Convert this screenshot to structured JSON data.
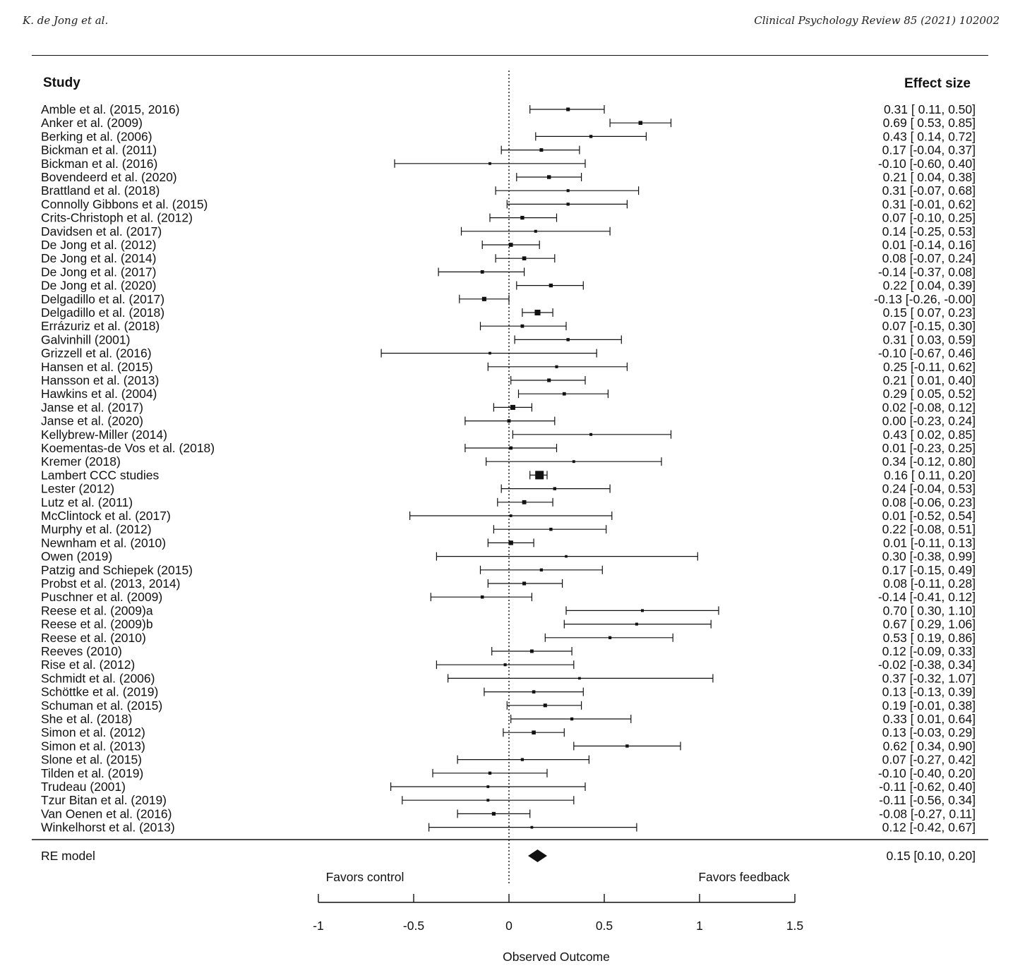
{
  "page_header": {
    "authors": "K. de Jong et al.",
    "journal": "Clinical Psychology Review 85 (2021) 102002"
  },
  "chart_data": {
    "type": "forest",
    "study_header": "Study",
    "effect_header": "Effect size",
    "xlabel": "Observed Outcome",
    "left_favors": "Favors control",
    "right_favors": "Favors feedback",
    "xlim": [
      -1,
      1.5
    ],
    "xticks": [
      -1,
      -0.5,
      0,
      0.5,
      1,
      1.5
    ],
    "xtick_labels": [
      "-1",
      "-0.5",
      "0",
      "0.5",
      "1",
      "1.5"
    ],
    "reference_line": 0,
    "studies": [
      {
        "name": "Amble et al. (2015, 2016)",
        "es": 0.31,
        "lo": 0.11,
        "hi": 0.5,
        "ci_text": "0.31 [ 0.11,  0.50]"
      },
      {
        "name": "Anker et al. (2009)",
        "es": 0.69,
        "lo": 0.53,
        "hi": 0.85,
        "ci_text": "0.69 [ 0.53,  0.85]"
      },
      {
        "name": "Berking et al. (2006)",
        "es": 0.43,
        "lo": 0.14,
        "hi": 0.72,
        "ci_text": "0.43 [ 0.14,  0.72]"
      },
      {
        "name": "Bickman et al. (2011)",
        "es": 0.17,
        "lo": -0.04,
        "hi": 0.37,
        "ci_text": "0.17 [-0.04,  0.37]"
      },
      {
        "name": "Bickman et al. (2016)",
        "es": -0.1,
        "lo": -0.6,
        "hi": 0.4,
        "ci_text": "-0.10 [-0.60,  0.40]"
      },
      {
        "name": "Bovendeerd et al. (2020)",
        "es": 0.21,
        "lo": 0.04,
        "hi": 0.38,
        "ci_text": "0.21 [ 0.04,  0.38]"
      },
      {
        "name": "Brattland et al. (2018)",
        "es": 0.31,
        "lo": -0.07,
        "hi": 0.68,
        "ci_text": "0.31 [-0.07,  0.68]"
      },
      {
        "name": "Connolly Gibbons et al. (2015)",
        "es": 0.31,
        "lo": -0.01,
        "hi": 0.62,
        "ci_text": "0.31 [-0.01,  0.62]"
      },
      {
        "name": "Crits-Christoph et al. (2012)",
        "es": 0.07,
        "lo": -0.1,
        "hi": 0.25,
        "ci_text": "0.07 [-0.10,  0.25]"
      },
      {
        "name": "Davidsen et al. (2017)",
        "es": 0.14,
        "lo": -0.25,
        "hi": 0.53,
        "ci_text": "0.14 [-0.25,  0.53]"
      },
      {
        "name": "De Jong et al. (2012)",
        "es": 0.01,
        "lo": -0.14,
        "hi": 0.16,
        "ci_text": "0.01 [-0.14,  0.16]"
      },
      {
        "name": "De Jong et al. (2014)",
        "es": 0.08,
        "lo": -0.07,
        "hi": 0.24,
        "ci_text": "0.08 [-0.07,  0.24]"
      },
      {
        "name": "De Jong et al. (2017)",
        "es": -0.14,
        "lo": -0.37,
        "hi": 0.08,
        "ci_text": "-0.14 [-0.37,  0.08]"
      },
      {
        "name": "De Jong et al. (2020)",
        "es": 0.22,
        "lo": 0.04,
        "hi": 0.39,
        "ci_text": "0.22 [ 0.04,  0.39]"
      },
      {
        "name": "Delgadillo et al. (2017)",
        "es": -0.13,
        "lo": -0.26,
        "hi": -0.0,
        "ci_text": "-0.13 [-0.26, -0.00]"
      },
      {
        "name": "Delgadillo et al. (2018)",
        "es": 0.15,
        "lo": 0.07,
        "hi": 0.23,
        "ci_text": "0.15 [ 0.07,  0.23]"
      },
      {
        "name": "Errázuriz et al. (2018)",
        "es": 0.07,
        "lo": -0.15,
        "hi": 0.3,
        "ci_text": "0.07 [-0.15,  0.30]"
      },
      {
        "name": "Galvinhill (2001)",
        "es": 0.31,
        "lo": 0.03,
        "hi": 0.59,
        "ci_text": "0.31 [ 0.03,  0.59]"
      },
      {
        "name": "Grizzell et al. (2016)",
        "es": -0.1,
        "lo": -0.67,
        "hi": 0.46,
        "ci_text": "-0.10 [-0.67,  0.46]"
      },
      {
        "name": "Hansen et al. (2015)",
        "es": 0.25,
        "lo": -0.11,
        "hi": 0.62,
        "ci_text": "0.25 [-0.11,  0.62]"
      },
      {
        "name": "Hansson et al. (2013)",
        "es": 0.21,
        "lo": 0.01,
        "hi": 0.4,
        "ci_text": "0.21 [ 0.01,  0.40]"
      },
      {
        "name": "Hawkins et al. (2004)",
        "es": 0.29,
        "lo": 0.05,
        "hi": 0.52,
        "ci_text": "0.29 [ 0.05,  0.52]"
      },
      {
        "name": "Janse et al. (2017)",
        "es": 0.02,
        "lo": -0.08,
        "hi": 0.12,
        "ci_text": "0.02 [-0.08,  0.12]"
      },
      {
        "name": "Janse et al. (2020)",
        "es": 0.0,
        "lo": -0.23,
        "hi": 0.24,
        "ci_text": "0.00 [-0.23,  0.24]"
      },
      {
        "name": "Kellybrew-Miller (2014)",
        "es": 0.43,
        "lo": 0.02,
        "hi": 0.85,
        "ci_text": "0.43 [ 0.02,  0.85]"
      },
      {
        "name": "Koementas-de Vos et al. (2018)",
        "es": 0.01,
        "lo": -0.23,
        "hi": 0.25,
        "ci_text": "0.01 [-0.23,  0.25]"
      },
      {
        "name": "Kremer (2018)",
        "es": 0.34,
        "lo": -0.12,
        "hi": 0.8,
        "ci_text": "0.34 [-0.12,  0.80]"
      },
      {
        "name": "Lambert CCC studies",
        "es": 0.16,
        "lo": 0.11,
        "hi": 0.2,
        "ci_text": "0.16 [ 0.11,  0.20]"
      },
      {
        "name": "Lester (2012)",
        "es": 0.24,
        "lo": -0.04,
        "hi": 0.53,
        "ci_text": "0.24 [-0.04,  0.53]"
      },
      {
        "name": "Lutz et al. (2011)",
        "es": 0.08,
        "lo": -0.06,
        "hi": 0.23,
        "ci_text": "0.08 [-0.06,  0.23]"
      },
      {
        "name": "McClintock et al. (2017)",
        "es": 0.01,
        "lo": -0.52,
        "hi": 0.54,
        "ci_text": "0.01 [-0.52,  0.54]"
      },
      {
        "name": "Murphy et al. (2012)",
        "es": 0.22,
        "lo": -0.08,
        "hi": 0.51,
        "ci_text": "0.22 [-0.08,  0.51]"
      },
      {
        "name": "Newnham et al. (2010)",
        "es": 0.01,
        "lo": -0.11,
        "hi": 0.13,
        "ci_text": "0.01 [-0.11,  0.13]"
      },
      {
        "name": "Owen (2019)",
        "es": 0.3,
        "lo": -0.38,
        "hi": 0.99,
        "ci_text": "0.30 [-0.38,  0.99]"
      },
      {
        "name": "Patzig and Schiepek (2015)",
        "es": 0.17,
        "lo": -0.15,
        "hi": 0.49,
        "ci_text": "0.17 [-0.15,  0.49]"
      },
      {
        "name": "Probst et al. (2013, 2014)",
        "es": 0.08,
        "lo": -0.11,
        "hi": 0.28,
        "ci_text": "0.08 [-0.11,  0.28]"
      },
      {
        "name": "Puschner et al. (2009)",
        "es": -0.14,
        "lo": -0.41,
        "hi": 0.12,
        "ci_text": "-0.14 [-0.41,  0.12]"
      },
      {
        "name": "Reese et al. (2009)a",
        "es": 0.7,
        "lo": 0.3,
        "hi": 1.1,
        "ci_text": "0.70 [ 0.30,  1.10]"
      },
      {
        "name": "Reese et al. (2009)b",
        "es": 0.67,
        "lo": 0.29,
        "hi": 1.06,
        "ci_text": "0.67 [ 0.29,  1.06]"
      },
      {
        "name": "Reese et al. (2010)",
        "es": 0.53,
        "lo": 0.19,
        "hi": 0.86,
        "ci_text": "0.53 [ 0.19,  0.86]"
      },
      {
        "name": "Reeves (2010)",
        "es": 0.12,
        "lo": -0.09,
        "hi": 0.33,
        "ci_text": "0.12 [-0.09,  0.33]"
      },
      {
        "name": "Rise et al. (2012)",
        "es": -0.02,
        "lo": -0.38,
        "hi": 0.34,
        "ci_text": "-0.02 [-0.38,  0.34]"
      },
      {
        "name": "Schmidt et al. (2006)",
        "es": 0.37,
        "lo": -0.32,
        "hi": 1.07,
        "ci_text": "0.37 [-0.32,  1.07]"
      },
      {
        "name": "Schöttke et al. (2019)",
        "es": 0.13,
        "lo": -0.13,
        "hi": 0.39,
        "ci_text": "0.13 [-0.13,  0.39]"
      },
      {
        "name": "Schuman et al. (2015)",
        "es": 0.19,
        "lo": -0.01,
        "hi": 0.38,
        "ci_text": "0.19 [-0.01,  0.38]"
      },
      {
        "name": "She et al. (2018)",
        "es": 0.33,
        "lo": 0.01,
        "hi": 0.64,
        "ci_text": "0.33 [ 0.01,  0.64]"
      },
      {
        "name": "Simon et al. (2012)",
        "es": 0.13,
        "lo": -0.03,
        "hi": 0.29,
        "ci_text": "0.13 [-0.03,  0.29]"
      },
      {
        "name": "Simon et al. (2013)",
        "es": 0.62,
        "lo": 0.34,
        "hi": 0.9,
        "ci_text": "0.62 [ 0.34,  0.90]"
      },
      {
        "name": "Slone et al. (2015)",
        "es": 0.07,
        "lo": -0.27,
        "hi": 0.42,
        "ci_text": "0.07 [-0.27,  0.42]"
      },
      {
        "name": "Tilden et al. (2019)",
        "es": -0.1,
        "lo": -0.4,
        "hi": 0.2,
        "ci_text": "-0.10 [-0.40,  0.20]"
      },
      {
        "name": "Trudeau (2001)",
        "es": -0.11,
        "lo": -0.62,
        "hi": 0.4,
        "ci_text": "-0.11 [-0.62,  0.40]"
      },
      {
        "name": "Tzur Bitan et al. (2019)",
        "es": -0.11,
        "lo": -0.56,
        "hi": 0.34,
        "ci_text": "-0.11 [-0.56,  0.34]"
      },
      {
        "name": "Van Oenen et al. (2016)",
        "es": -0.08,
        "lo": -0.27,
        "hi": 0.11,
        "ci_text": "-0.08 [-0.27,  0.11]"
      },
      {
        "name": "Winkelhorst et al. (2013)",
        "es": 0.12,
        "lo": -0.42,
        "hi": 0.67,
        "ci_text": "0.12 [-0.42,  0.67]"
      }
    ],
    "summary": {
      "name": "RE model",
      "es": 0.15,
      "lo": 0.1,
      "hi": 0.2,
      "ci_text": "0.15 [0.10, 0.20]"
    }
  }
}
